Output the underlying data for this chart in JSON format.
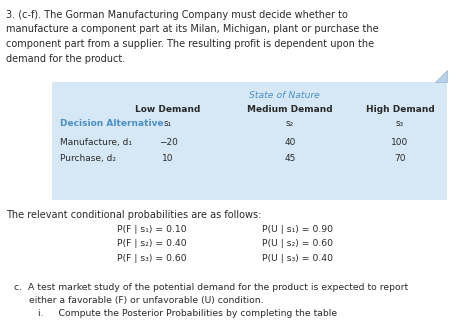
{
  "title_lines": [
    "3. (c-f). The Gorman Manufacturing Company must decide whether to",
    "manufacture a component part at its Milan, Michigan, plant or purchase the",
    "component part from a supplier. The resulting profit is dependent upon the",
    "demand for the product."
  ],
  "table_header_center": "State of Nature",
  "table_col_headers": [
    "Low Demand",
    "Medium Demand",
    "High Demand"
  ],
  "table_col_sub": [
    "s₁",
    "s₂",
    "s₃"
  ],
  "table_row_header": "Decision Alternative",
  "table_rows": [
    [
      "Manufacture, d₁",
      "−20",
      "40",
      "100"
    ],
    [
      "Purchase, d₂",
      "10",
      "45",
      "70"
    ]
  ],
  "prob_intro": "The relevant conditional probabilities are as follows:",
  "prob_left": [
    "P(F | s₁) = 0.10",
    "P(F | s₂) = 0.40",
    "P(F | s₃) = 0.60"
  ],
  "prob_right": [
    "P(U | s₁) = 0.90",
    "P(U | s₂) = 0.60",
    "P(U | s₃) = 0.40"
  ],
  "footer_c1": "c.  A test market study of the potential demand for the product is expected to report",
  "footer_c2": "     either a favorable (F) or unfavorable (U) condition.",
  "footer_i": "        i.     Compute the Posterior Probabilities by completing the table",
  "table_bg": "#d6e8f5",
  "header_color": "#4a90c4",
  "body_color": "#2a2a2a",
  "bg_color": "#ffffff",
  "text_color_blue": "#3a7abf"
}
